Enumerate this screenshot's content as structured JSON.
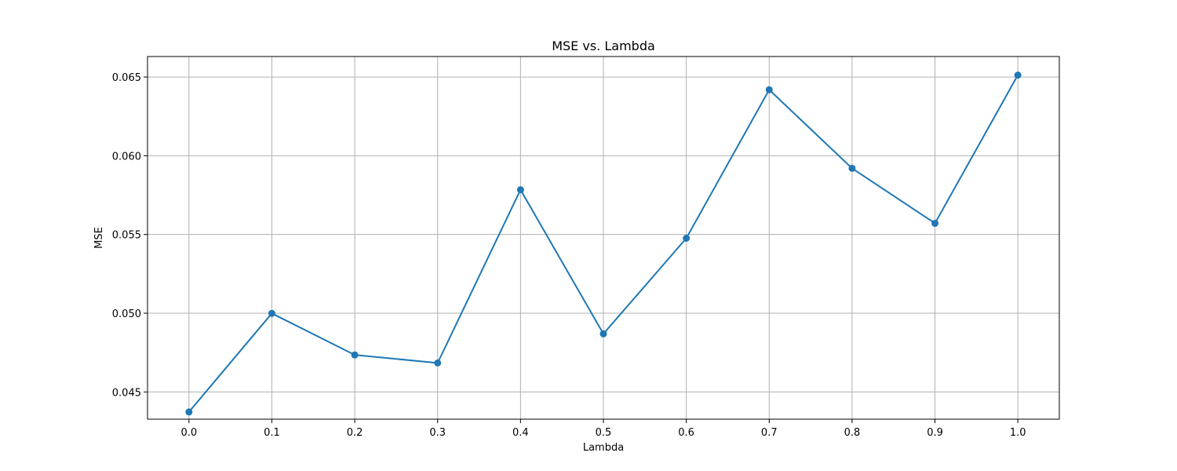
{
  "chart_data": {
    "type": "line",
    "title": "MSE vs. Lambda",
    "xlabel": "Lambda",
    "ylabel": "MSE",
    "x": [
      0.0,
      0.1,
      0.2,
      0.3,
      0.4,
      0.5,
      0.6,
      0.7,
      0.8,
      0.9,
      1.0
    ],
    "series": [
      {
        "values": [
          0.04373,
          0.04999,
          0.04735,
          0.04684,
          0.05784,
          0.04869,
          0.05476,
          0.06419,
          0.0592,
          0.05571,
          0.06512
        ],
        "color": "#1f77b4",
        "marker": "circle"
      }
    ],
    "xlim": [
      -0.05,
      1.05
    ],
    "ylim": [
      0.04327,
      0.0663
    ],
    "xticks": [
      "0.0",
      "0.1",
      "0.2",
      "0.3",
      "0.4",
      "0.5",
      "0.6",
      "0.7",
      "0.8",
      "0.9",
      "1.0"
    ],
    "yticks": [
      "0.045",
      "0.050",
      "0.055",
      "0.060",
      "0.065"
    ],
    "grid": true,
    "legend": false
  }
}
